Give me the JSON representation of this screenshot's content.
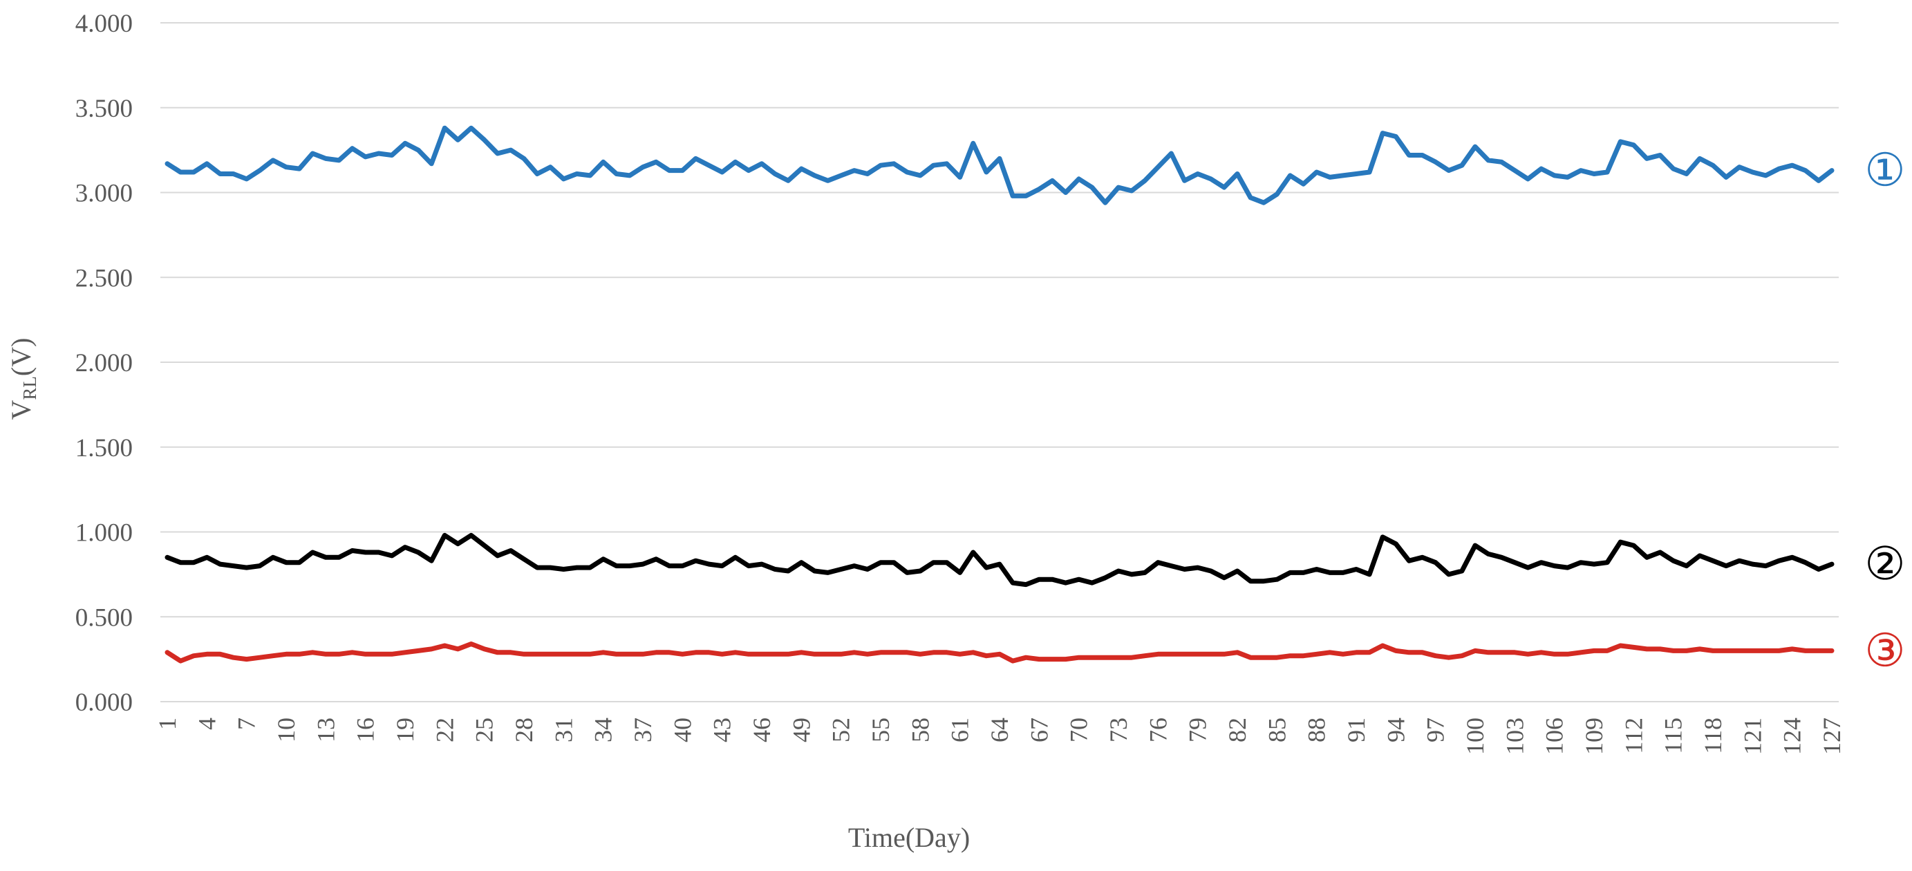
{
  "chart_data": {
    "type": "line",
    "xlabel": "Time(Day)",
    "ylabel_main": "V",
    "ylabel_sub": "RL",
    "ylabel_unit": "(V)",
    "ylim": [
      0,
      4
    ],
    "yticks": [
      "0.000",
      "0.500",
      "1.000",
      "1.500",
      "2.000",
      "2.500",
      "3.000",
      "3.500",
      "4.000"
    ],
    "xticks": [
      "1",
      "4",
      "7",
      "10",
      "13",
      "16",
      "19",
      "22",
      "25",
      "28",
      "31",
      "34",
      "37",
      "40",
      "43",
      "46",
      "49",
      "52",
      "55",
      "58",
      "61",
      "64",
      "67",
      "70",
      "73",
      "76",
      "79",
      "82",
      "85",
      "88",
      "91",
      "94",
      "97",
      "100",
      "103",
      "106",
      "109",
      "112",
      "115",
      "118",
      "121",
      "124",
      "127"
    ],
    "grid": true,
    "x": [
      1,
      2,
      3,
      4,
      5,
      6,
      7,
      8,
      9,
      10,
      11,
      12,
      13,
      14,
      15,
      16,
      17,
      18,
      19,
      20,
      21,
      22,
      23,
      24,
      25,
      26,
      27,
      28,
      29,
      30,
      31,
      32,
      33,
      34,
      35,
      36,
      37,
      38,
      39,
      40,
      41,
      42,
      43,
      44,
      45,
      46,
      47,
      48,
      49,
      50,
      51,
      52,
      53,
      54,
      55,
      56,
      57,
      58,
      59,
      60,
      61,
      62,
      63,
      64,
      65,
      66,
      67,
      68,
      69,
      70,
      71,
      72,
      73,
      74,
      75,
      76,
      77,
      78,
      79,
      80,
      81,
      82,
      83,
      84,
      85,
      86,
      87,
      88,
      89,
      90,
      91,
      92,
      93,
      94,
      95,
      96,
      97,
      98,
      99,
      100,
      101,
      102,
      103,
      104,
      105,
      106,
      107,
      108,
      109,
      110,
      111,
      112,
      113,
      114,
      115,
      116,
      117,
      118,
      119,
      120,
      121,
      122,
      123,
      124,
      125,
      126,
      127
    ],
    "series": [
      {
        "name": "①",
        "color": "#2878bd",
        "values": [
          3.17,
          3.12,
          3.12,
          3.17,
          3.11,
          3.11,
          3.08,
          3.13,
          3.19,
          3.15,
          3.14,
          3.23,
          3.2,
          3.19,
          3.26,
          3.21,
          3.23,
          3.22,
          3.29,
          3.25,
          3.17,
          3.38,
          3.31,
          3.38,
          3.31,
          3.23,
          3.25,
          3.2,
          3.11,
          3.15,
          3.08,
          3.11,
          3.1,
          3.18,
          3.11,
          3.1,
          3.15,
          3.18,
          3.13,
          3.13,
          3.2,
          3.16,
          3.12,
          3.18,
          3.13,
          3.17,
          3.11,
          3.07,
          3.14,
          3.1,
          3.07,
          3.1,
          3.13,
          3.11,
          3.16,
          3.17,
          3.12,
          3.1,
          3.16,
          3.17,
          3.09,
          3.29,
          3.12,
          3.2,
          2.98,
          2.98,
          3.02,
          3.07,
          3.0,
          3.08,
          3.03,
          2.94,
          3.03,
          3.01,
          3.07,
          3.15,
          3.23,
          3.07,
          3.11,
          3.08,
          3.03,
          3.11,
          2.97,
          2.94,
          2.99,
          3.1,
          3.05,
          3.12,
          3.09,
          3.1,
          3.11,
          3.12,
          3.35,
          3.33,
          3.22,
          3.22,
          3.18,
          3.13,
          3.16,
          3.27,
          3.19,
          3.18,
          3.13,
          3.08,
          3.14,
          3.1,
          3.09,
          3.13,
          3.11,
          3.12,
          3.3,
          3.28,
          3.2,
          3.22,
          3.14,
          3.11,
          3.2,
          3.16,
          3.09,
          3.15,
          3.12,
          3.1,
          3.14,
          3.16,
          3.13,
          3.07,
          3.13
        ]
      },
      {
        "name": "②",
        "color": "#000000",
        "values": [
          0.85,
          0.82,
          0.82,
          0.85,
          0.81,
          0.8,
          0.79,
          0.8,
          0.85,
          0.82,
          0.82,
          0.88,
          0.85,
          0.85,
          0.89,
          0.88,
          0.88,
          0.86,
          0.91,
          0.88,
          0.83,
          0.98,
          0.93,
          0.98,
          0.92,
          0.86,
          0.89,
          0.84,
          0.79,
          0.79,
          0.78,
          0.79,
          0.79,
          0.84,
          0.8,
          0.8,
          0.81,
          0.84,
          0.8,
          0.8,
          0.83,
          0.81,
          0.8,
          0.85,
          0.8,
          0.81,
          0.78,
          0.77,
          0.82,
          0.77,
          0.76,
          0.78,
          0.8,
          0.78,
          0.82,
          0.82,
          0.76,
          0.77,
          0.82,
          0.82,
          0.76,
          0.88,
          0.79,
          0.81,
          0.7,
          0.69,
          0.72,
          0.72,
          0.7,
          0.72,
          0.7,
          0.73,
          0.77,
          0.75,
          0.76,
          0.82,
          0.8,
          0.78,
          0.79,
          0.77,
          0.73,
          0.77,
          0.71,
          0.71,
          0.72,
          0.76,
          0.76,
          0.78,
          0.76,
          0.76,
          0.78,
          0.75,
          0.97,
          0.93,
          0.83,
          0.85,
          0.82,
          0.75,
          0.77,
          0.92,
          0.87,
          0.85,
          0.82,
          0.79,
          0.82,
          0.8,
          0.79,
          0.82,
          0.81,
          0.82,
          0.94,
          0.92,
          0.85,
          0.88,
          0.83,
          0.8,
          0.86,
          0.83,
          0.8,
          0.83,
          0.81,
          0.8,
          0.83,
          0.85,
          0.82,
          0.78,
          0.81
        ]
      },
      {
        "name": "③",
        "color": "#d42a22",
        "values": [
          0.29,
          0.24,
          0.27,
          0.28,
          0.28,
          0.26,
          0.25,
          0.26,
          0.27,
          0.28,
          0.28,
          0.29,
          0.28,
          0.28,
          0.29,
          0.28,
          0.28,
          0.28,
          0.29,
          0.3,
          0.31,
          0.33,
          0.31,
          0.34,
          0.31,
          0.29,
          0.29,
          0.28,
          0.28,
          0.28,
          0.28,
          0.28,
          0.28,
          0.29,
          0.28,
          0.28,
          0.28,
          0.29,
          0.29,
          0.28,
          0.29,
          0.29,
          0.28,
          0.29,
          0.28,
          0.28,
          0.28,
          0.28,
          0.29,
          0.28,
          0.28,
          0.28,
          0.29,
          0.28,
          0.29,
          0.29,
          0.29,
          0.28,
          0.29,
          0.29,
          0.28,
          0.29,
          0.27,
          0.28,
          0.24,
          0.26,
          0.25,
          0.25,
          0.25,
          0.26,
          0.26,
          0.26,
          0.26,
          0.26,
          0.27,
          0.28,
          0.28,
          0.28,
          0.28,
          0.28,
          0.28,
          0.29,
          0.26,
          0.26,
          0.26,
          0.27,
          0.27,
          0.28,
          0.29,
          0.28,
          0.29,
          0.29,
          0.33,
          0.3,
          0.29,
          0.29,
          0.27,
          0.26,
          0.27,
          0.3,
          0.29,
          0.29,
          0.29,
          0.28,
          0.29,
          0.28,
          0.28,
          0.29,
          0.3,
          0.3,
          0.33,
          0.32,
          0.31,
          0.31,
          0.3,
          0.3,
          0.31,
          0.3,
          0.3,
          0.3,
          0.3,
          0.3,
          0.3,
          0.31,
          0.3,
          0.3,
          0.3
        ]
      }
    ]
  }
}
